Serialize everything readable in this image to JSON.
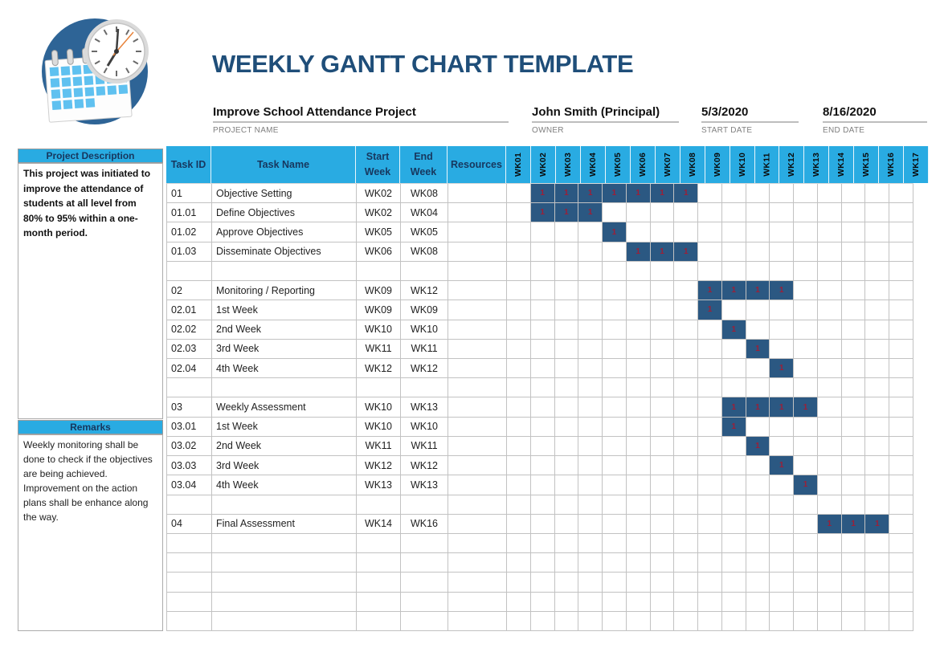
{
  "page": {
    "title": "WEEKLY GANTT CHART TEMPLATE"
  },
  "fields": [
    {
      "value": "Improve School Attendance Project",
      "label": "PROJECT NAME"
    },
    {
      "value": "John Smith (Principal)",
      "label": "OWNER"
    },
    {
      "value": "5/3/2020",
      "label": "START DATE"
    },
    {
      "value": "8/16/2020",
      "label": "END DATE"
    }
  ],
  "sidebar": {
    "description": {
      "title": "Project Description",
      "text": "This project was initiated to improve the attendance of students at all level from 80% to 95% within a one-month period."
    },
    "remarks": {
      "title": "Remarks",
      "lines": [
        "Weekly monitoring shall be done to check if the objectives are being achieved.",
        "Improvement on the action plans shall be enhance along the way."
      ]
    }
  },
  "table": {
    "headers": {
      "task_id": "Task ID",
      "task_name": "Task Name",
      "start_l1": "Start",
      "start_l2": "Week",
      "end_l1": "End",
      "end_l2": "Week",
      "resources": "Resources"
    },
    "weeks": [
      "WK01",
      "WK02",
      "WK03",
      "WK04",
      "WK05",
      "WK06",
      "WK07",
      "WK08",
      "WK09",
      "WK10",
      "WK11",
      "WK12",
      "WK13",
      "WK14",
      "WK15",
      "WK16",
      "WK17"
    ],
    "bar_value": "1",
    "rows": [
      {
        "id": "01",
        "name": "Objective Setting",
        "start": "WK02",
        "end": "WK08",
        "bar": [
          2,
          8
        ]
      },
      {
        "id": "01.01",
        "name": "Define Objectives",
        "start": "WK02",
        "end": "WK04",
        "bar": [
          2,
          4
        ]
      },
      {
        "id": "01.02",
        "name": "Approve Objectives",
        "start": "WK05",
        "end": "WK05",
        "bar": [
          5,
          5
        ]
      },
      {
        "id": "01.03",
        "name": "Disseminate Objectives",
        "start": "WK06",
        "end": "WK08",
        "bar": [
          6,
          8
        ]
      },
      {
        "id": "",
        "name": "",
        "start": "",
        "end": "",
        "bar": null
      },
      {
        "id": "02",
        "name": "Monitoring / Reporting",
        "start": "WK09",
        "end": "WK12",
        "bar": [
          9,
          12
        ]
      },
      {
        "id": "02.01",
        "name": "1st Week",
        "start": "WK09",
        "end": "WK09",
        "bar": [
          9,
          9
        ]
      },
      {
        "id": "02.02",
        "name": "2nd Week",
        "start": "WK10",
        "end": "WK10",
        "bar": [
          10,
          10
        ]
      },
      {
        "id": "02.03",
        "name": "3rd Week",
        "start": "WK11",
        "end": "WK11",
        "bar": [
          11,
          11
        ]
      },
      {
        "id": "02.04",
        "name": "4th Week",
        "start": "WK12",
        "end": "WK12",
        "bar": [
          12,
          12
        ]
      },
      {
        "id": "",
        "name": "",
        "start": "",
        "end": "",
        "bar": null
      },
      {
        "id": "03",
        "name": "Weekly Assessment",
        "start": "WK10",
        "end": "WK13",
        "bar": [
          10,
          13
        ]
      },
      {
        "id": "03.01",
        "name": "1st Week",
        "start": "WK10",
        "end": "WK10",
        "bar": [
          10,
          10
        ]
      },
      {
        "id": "03.02",
        "name": "2nd Week",
        "start": "WK11",
        "end": "WK11",
        "bar": [
          11,
          11
        ]
      },
      {
        "id": "03.03",
        "name": "3rd Week",
        "start": "WK12",
        "end": "WK12",
        "bar": [
          12,
          12
        ]
      },
      {
        "id": "03.04",
        "name": "4th Week",
        "start": "WK13",
        "end": "WK13",
        "bar": [
          13,
          13
        ]
      },
      {
        "id": "",
        "name": "",
        "start": "",
        "end": "",
        "bar": null
      },
      {
        "id": "04",
        "name": "Final Assessment",
        "start": "WK14",
        "end": "WK16",
        "bar": [
          14,
          16
        ]
      },
      {
        "id": "",
        "name": "",
        "start": "",
        "end": "",
        "bar": null
      },
      {
        "id": "",
        "name": "",
        "start": "",
        "end": "",
        "bar": null
      },
      {
        "id": "",
        "name": "",
        "start": "",
        "end": "",
        "bar": null
      },
      {
        "id": "",
        "name": "",
        "start": "",
        "end": "",
        "bar": null
      },
      {
        "id": "",
        "name": "",
        "start": "",
        "end": "",
        "bar": null
      }
    ]
  },
  "chart_data": {
    "type": "table",
    "subtype": "gantt",
    "title": "WEEKLY GANTT CHART TEMPLATE",
    "project_name": "Improve School Attendance Project",
    "owner": "John Smith (Principal)",
    "start_date": "5/3/2020",
    "end_date": "8/16/2020",
    "x": [
      "WK01",
      "WK02",
      "WK03",
      "WK04",
      "WK05",
      "WK06",
      "WK07",
      "WK08",
      "WK09",
      "WK10",
      "WK11",
      "WK12",
      "WK13",
      "WK14",
      "WK15",
      "WK16",
      "WK17"
    ],
    "cell_value_shown_in_bars": "1",
    "tasks": [
      {
        "id": "01",
        "name": "Objective Setting",
        "start_week": "WK02",
        "end_week": "WK08"
      },
      {
        "id": "01.01",
        "name": "Define Objectives",
        "start_week": "WK02",
        "end_week": "WK04"
      },
      {
        "id": "01.02",
        "name": "Approve Objectives",
        "start_week": "WK05",
        "end_week": "WK05"
      },
      {
        "id": "01.03",
        "name": "Disseminate Objectives",
        "start_week": "WK06",
        "end_week": "WK08"
      },
      {
        "id": "02",
        "name": "Monitoring / Reporting",
        "start_week": "WK09",
        "end_week": "WK12"
      },
      {
        "id": "02.01",
        "name": "1st Week",
        "start_week": "WK09",
        "end_week": "WK09"
      },
      {
        "id": "02.02",
        "name": "2nd Week",
        "start_week": "WK10",
        "end_week": "WK10"
      },
      {
        "id": "02.03",
        "name": "3rd Week",
        "start_week": "WK11",
        "end_week": "WK11"
      },
      {
        "id": "02.04",
        "name": "4th Week",
        "start_week": "WK12",
        "end_week": "WK12"
      },
      {
        "id": "03",
        "name": "Weekly Assessment",
        "start_week": "WK10",
        "end_week": "WK13"
      },
      {
        "id": "03.01",
        "name": "1st Week",
        "start_week": "WK10",
        "end_week": "WK10"
      },
      {
        "id": "03.02",
        "name": "2nd Week",
        "start_week": "WK11",
        "end_week": "WK11"
      },
      {
        "id": "03.03",
        "name": "3rd Week",
        "start_week": "WK12",
        "end_week": "WK12"
      },
      {
        "id": "03.04",
        "name": "4th Week",
        "start_week": "WK13",
        "end_week": "WK13"
      },
      {
        "id": "04",
        "name": "Final Assessment",
        "start_week": "WK14",
        "end_week": "WK16"
      }
    ]
  },
  "colors": {
    "accent_cyan": "#29ABE2",
    "bar_fill": "#2B5882",
    "bar_text": "#9C1F38",
    "title_navy": "#1F4E79",
    "header_text_navy": "#17375E",
    "grid_line": "#C2C2C2"
  }
}
